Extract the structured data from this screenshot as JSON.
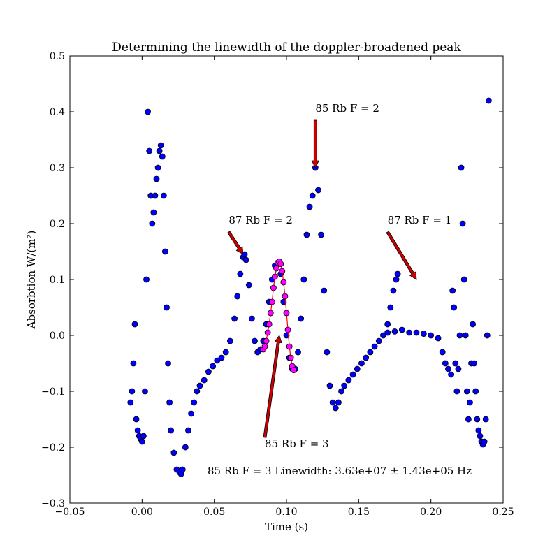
{
  "chart_data": {
    "type": "scatter",
    "title": "Determining the linewidth of the doppler-broadened peak",
    "xlabel": "Time (s)",
    "ylabel": "Absorbtion W/(m²)",
    "xlim": [
      -0.05,
      0.25
    ],
    "ylim": [
      -0.3,
      0.5
    ],
    "xticks": [
      -0.05,
      0.0,
      0.05,
      0.1,
      0.15,
      0.2,
      0.25
    ],
    "xtick_labels": [
      "−0.05",
      "0.00",
      "0.05",
      "0.10",
      "0.15",
      "0.20",
      "0.25"
    ],
    "yticks": [
      -0.3,
      -0.2,
      -0.1,
      0.0,
      0.1,
      0.2,
      0.3,
      0.4,
      0.5
    ],
    "ytick_labels": [
      "−0.3",
      "−0.2",
      "−0.1",
      "0.0",
      "0.1",
      "0.2",
      "0.3",
      "0.4",
      "0.5"
    ],
    "grid": false,
    "colors": {
      "data": "#0000ff",
      "fit": "#ff00ff",
      "fit_line": "#ff0000",
      "arrow": "#cc0000"
    },
    "series": [
      {
        "marker": "circle",
        "color": "#0000ff",
        "x": [
          -0.008,
          -0.007,
          -0.006,
          -0.005,
          -0.004,
          -0.003,
          -0.002,
          -0.001,
          0.0,
          0.001,
          0.002,
          0.003,
          0.004,
          0.005,
          0.006,
          0.007,
          0.008,
          0.009,
          0.01,
          0.011,
          0.012,
          0.013,
          0.014,
          0.015,
          0.016,
          0.017,
          0.018,
          0.019,
          0.02,
          0.022,
          0.024,
          0.026,
          0.027,
          0.028,
          0.03,
          0.032,
          0.034,
          0.036,
          0.038,
          0.04,
          0.043,
          0.046,
          0.049,
          0.052,
          0.055,
          0.058,
          0.061,
          0.064,
          0.066,
          0.068,
          0.07,
          0.071,
          0.072,
          0.074,
          0.076,
          0.078,
          0.08,
          0.082,
          0.084,
          0.086,
          0.088,
          0.09,
          0.092,
          0.094,
          0.096,
          0.098,
          0.1,
          0.102,
          0.104,
          0.106,
          0.108,
          0.11,
          0.112,
          0.114,
          0.116,
          0.118,
          0.12,
          0.122,
          0.124,
          0.126,
          0.128,
          0.13,
          0.132,
          0.134,
          0.136,
          0.138,
          0.14,
          0.143,
          0.146,
          0.149,
          0.152,
          0.155,
          0.158,
          0.161,
          0.164,
          0.167,
          0.17,
          0.172,
          0.174,
          0.176,
          0.177,
          0.17,
          0.175,
          0.18,
          0.185,
          0.19,
          0.195,
          0.2,
          0.205,
          0.208,
          0.21,
          0.212,
          0.214,
          0.215,
          0.216,
          0.217,
          0.218,
          0.219,
          0.22,
          0.221,
          0.222,
          0.223,
          0.224,
          0.225,
          0.226,
          0.227,
          0.228,
          0.229,
          0.23,
          0.231,
          0.232,
          0.233,
          0.234,
          0.235,
          0.236,
          0.237,
          0.238,
          0.239,
          0.24
        ],
        "y": [
          -0.12,
          -0.1,
          -0.05,
          0.02,
          -0.15,
          -0.17,
          -0.18,
          -0.185,
          -0.19,
          -0.18,
          -0.1,
          0.1,
          0.4,
          0.33,
          0.25,
          0.2,
          0.22,
          0.25,
          0.28,
          0.3,
          0.33,
          0.34,
          0.32,
          0.25,
          0.15,
          0.05,
          -0.05,
          -0.12,
          -0.17,
          -0.21,
          -0.24,
          -0.245,
          -0.248,
          -0.24,
          -0.2,
          -0.17,
          -0.14,
          -0.12,
          -0.1,
          -0.09,
          -0.08,
          -0.065,
          -0.055,
          -0.045,
          -0.04,
          -0.03,
          -0.01,
          0.03,
          0.07,
          0.11,
          0.14,
          0.145,
          0.135,
          0.09,
          0.03,
          -0.01,
          -0.03,
          -0.025,
          -0.01,
          0.02,
          0.06,
          0.1,
          0.125,
          0.13,
          0.11,
          0.06,
          0.0,
          -0.04,
          -0.06,
          -0.06,
          -0.03,
          0.03,
          0.1,
          0.18,
          0.23,
          0.25,
          0.3,
          0.26,
          0.18,
          0.08,
          -0.03,
          -0.09,
          -0.12,
          -0.13,
          -0.12,
          -0.1,
          -0.09,
          -0.08,
          -0.07,
          -0.06,
          -0.05,
          -0.04,
          -0.03,
          -0.02,
          -0.01,
          0.0,
          0.02,
          0.05,
          0.08,
          0.1,
          0.11,
          0.005,
          0.007,
          0.01,
          0.005,
          0.005,
          0.003,
          0.0,
          -0.005,
          -0.03,
          -0.05,
          -0.06,
          -0.07,
          0.08,
          0.05,
          -0.05,
          -0.1,
          -0.06,
          0.0,
          0.3,
          0.2,
          0.1,
          0.0,
          -0.1,
          -0.15,
          -0.12,
          -0.05,
          0.02,
          -0.05,
          -0.1,
          -0.15,
          -0.17,
          -0.18,
          -0.19,
          -0.195,
          -0.19,
          -0.15,
          0.0,
          0.42
        ]
      },
      {
        "marker": "circle",
        "color": "#ff00ff",
        "x": [
          0.084,
          0.085,
          0.086,
          0.087,
          0.088,
          0.089,
          0.09,
          0.091,
          0.092,
          0.093,
          0.094,
          0.095,
          0.096,
          0.097,
          0.098,
          0.099,
          0.1,
          0.101,
          0.102,
          0.103,
          0.104,
          0.105
        ],
        "y": [
          -0.025,
          -0.02,
          -0.01,
          0.005,
          0.02,
          0.04,
          0.06,
          0.085,
          0.105,
          0.12,
          0.13,
          0.132,
          0.128,
          0.115,
          0.095,
          0.07,
          0.04,
          0.01,
          -0.02,
          -0.04,
          -0.055,
          -0.062
        ]
      }
    ],
    "annotations": [
      {
        "text": "85 Rb F = 2",
        "xytext": [
          0.12,
          0.4
        ],
        "xy": [
          0.12,
          0.3
        ]
      },
      {
        "text": "87 Rb F = 2",
        "xytext": [
          0.06,
          0.2
        ],
        "xy": [
          0.07,
          0.145
        ]
      },
      {
        "text": "87 Rb F = 1",
        "xytext": [
          0.17,
          0.2
        ],
        "xy": [
          0.19,
          0.1
        ]
      },
      {
        "text": "85 Rb F = 3",
        "xytext": [
          0.085,
          -0.2
        ],
        "xy": [
          0.095,
          0.0
        ]
      }
    ],
    "linewidth_text": "85 Rb F = 3 Linewidth:  3.63e+07 ± 1.43e+05 Hz"
  }
}
